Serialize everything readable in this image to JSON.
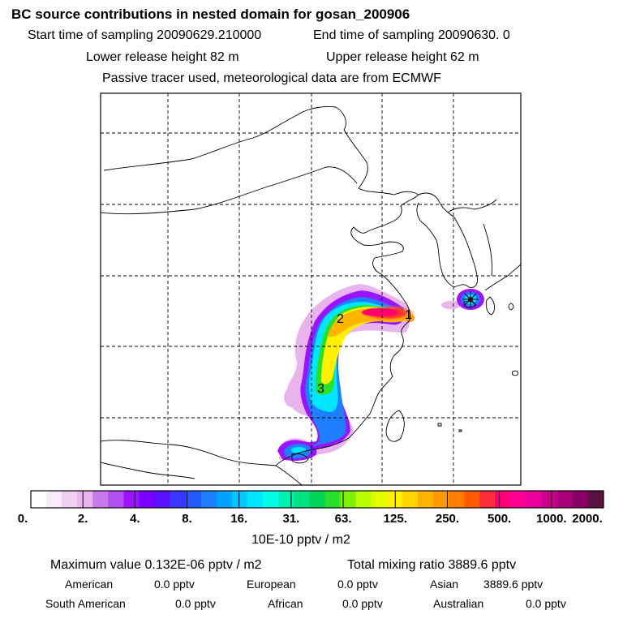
{
  "header": {
    "title": "BC  source contributions in nested domain for gosan_200906",
    "start_label": "Start time of sampling 20090629.210000",
    "end_label": "End time of sampling 20090630.     0",
    "lower_label": "Lower release height   82 m",
    "upper_label": "Upper release height   62 m",
    "tracer_note": "Passive tracer used, meteorological data are from ECMWF"
  },
  "map": {
    "markers": [
      "1",
      "2",
      "3"
    ],
    "receptor_icon": "star-marker-icon"
  },
  "colorbar": {
    "tick_labels": [
      "0.",
      "2.",
      "4.",
      "8.",
      "16.",
      "31.",
      "63.",
      "125.",
      "250.",
      "500.",
      "1000.",
      "2000."
    ],
    "colors": [
      "#ffffff",
      "#fbe8fb",
      "#f2cff2",
      "#e9b3ee",
      "#c77ae9",
      "#b14ff2",
      "#9a14ff",
      "#7a00ff",
      "#5a13ff",
      "#3a35ff",
      "#1f5bff",
      "#1f7fff",
      "#00a2ff",
      "#00c8ff",
      "#00e6ff",
      "#00ffe4",
      "#00f0b4",
      "#00e286",
      "#00d45a",
      "#2be02b",
      "#7ef000",
      "#b8ff00",
      "#e0ff00",
      "#fff000",
      "#ffd700",
      "#ffb400",
      "#ff9a00",
      "#ff7d00",
      "#ff5a00",
      "#ff2d3c",
      "#ff0078",
      "#ff0096",
      "#e8009a",
      "#c8008c",
      "#a8007a",
      "#880066",
      "#5a1040"
    ],
    "units": "10E-10 pptv / m2"
  },
  "stats": {
    "max_value": "Maximum value  0.132E-06 pptv / m2",
    "total_mixing": "Total mixing ratio     3889.6 pptv",
    "row1": [
      {
        "name": "American",
        "value": "0.0 pptv"
      },
      {
        "name": "European",
        "value": "0.0 pptv"
      },
      {
        "name": "Asian",
        "value": "3889.6 pptv"
      }
    ],
    "row2": [
      {
        "name": "South American",
        "value": "0.0 pptv"
      },
      {
        "name": "African",
        "value": "0.0 pptv"
      },
      {
        "name": "Australian",
        "value": "0.0 pptv"
      }
    ]
  }
}
